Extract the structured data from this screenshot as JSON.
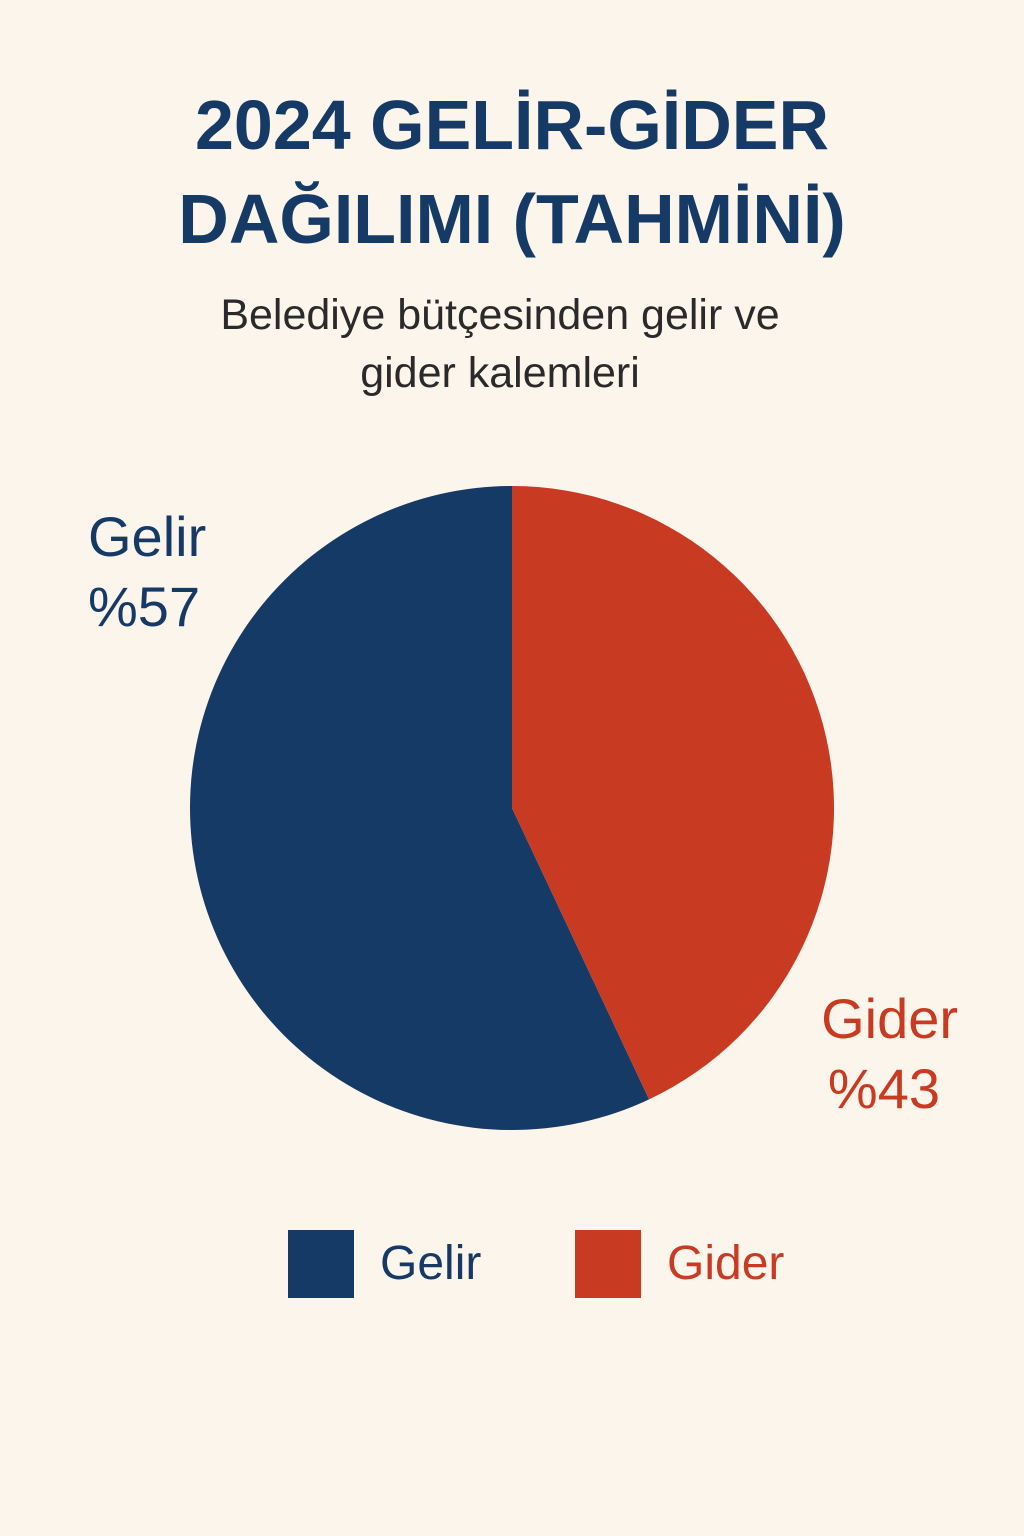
{
  "title_line1": "2024 GELİR-GİDER",
  "title_line2": "DAĞILIMI (TAHMİNİ)",
  "subtitle_line1": "Belediye bütçesinden gelir ve",
  "subtitle_line2": "gider kalemleri",
  "colors": {
    "background": "#fcf5eb",
    "title": "#163a66",
    "gelir": "#163a66",
    "gider": "#c93a22"
  },
  "chart_data": {
    "type": "pie",
    "title": "2024 GELİR-GİDER DAĞILIMI (TAHMİNİ)",
    "subtitle": "Belediye bütçesinden gelir ve gider kalemleri",
    "slices": [
      {
        "name": "Gelir",
        "label": "%57",
        "value": 57,
        "color": "#163a66"
      },
      {
        "name": "Gider",
        "label": "%43",
        "value": 43,
        "color": "#c93a22"
      }
    ],
    "legend": {
      "placement": "bottom",
      "entries": [
        "Gelir",
        "Gider"
      ]
    }
  }
}
